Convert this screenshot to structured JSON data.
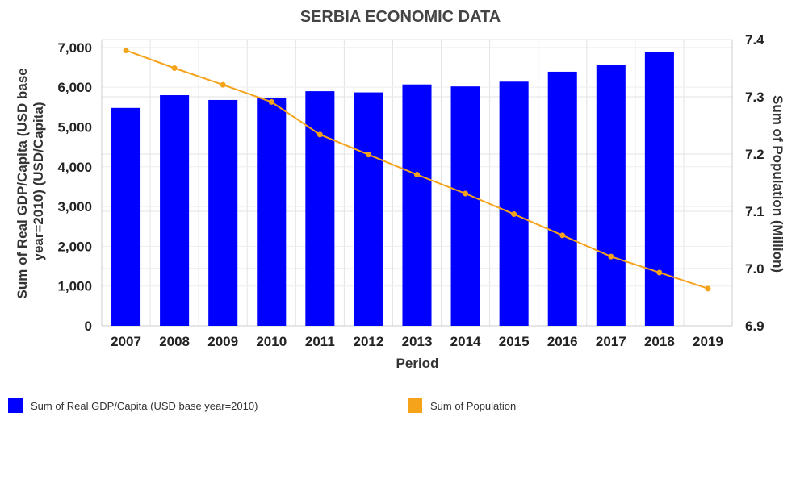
{
  "chart_data": {
    "type": "bar",
    "title": "SERBIA ECONOMIC DATA",
    "xlabel": "Period",
    "ylabel_left": "Sum of Real GDP/Capita (USD base year=2010) (USD/Capita)",
    "ylabel_right": "Sum of Population (Million)",
    "categories": [
      "2007",
      "2008",
      "2009",
      "2010",
      "2011",
      "2012",
      "2013",
      "2014",
      "2015",
      "2016",
      "2017",
      "2018",
      "2019"
    ],
    "y_left_lim": [
      0,
      7200
    ],
    "y_left_ticks": [
      "0",
      "1,000",
      "2,000",
      "3,000",
      "4,000",
      "5,000",
      "6,000",
      "7,000"
    ],
    "y_left_tick_values": [
      0,
      1000,
      2000,
      3000,
      4000,
      5000,
      6000,
      7000
    ],
    "y_right_lim": [
      6.9,
      7.4
    ],
    "y_right_ticks": [
      "6.9",
      "7.0",
      "7.1",
      "7.2",
      "7.3",
      "7.4"
    ],
    "y_right_tick_values": [
      6.9,
      7.0,
      7.1,
      7.2,
      7.3,
      7.4
    ],
    "grid": true,
    "legend_placement": "bottom",
    "series": [
      {
        "name": "Sum of Real GDP/Capita (USD base year=2010)",
        "type": "bar",
        "axis": "left",
        "color": "#0000ff",
        "values": [
          5480,
          5800,
          5680,
          5740,
          5900,
          5870,
          6070,
          6020,
          6140,
          6390,
          6560,
          6880,
          null
        ]
      },
      {
        "name": "Sum of Population",
        "type": "line",
        "axis": "right",
        "color": "#f5a31a",
        "values": [
          7.381,
          7.35,
          7.321,
          7.291,
          7.234,
          7.199,
          7.164,
          7.131,
          7.095,
          7.058,
          7.021,
          6.993,
          6.965
        ]
      }
    ]
  }
}
